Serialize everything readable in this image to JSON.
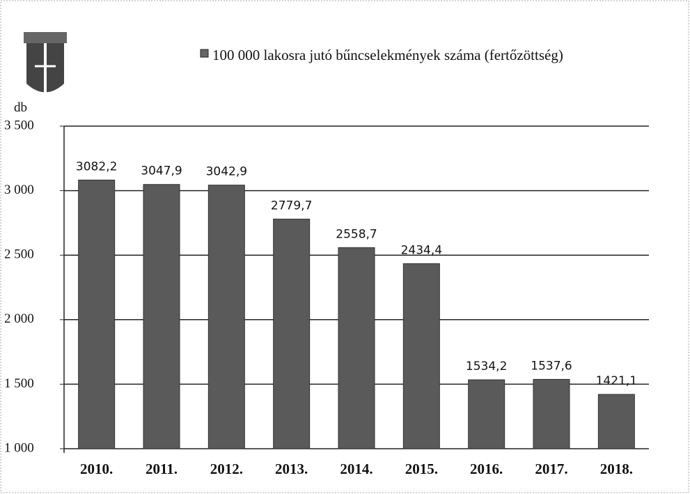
{
  "chart_data": {
    "type": "bar",
    "y_label": "db",
    "categories": [
      "2010.",
      "2011.",
      "2012.",
      "2013.",
      "2014.",
      "2015.",
      "2016.",
      "2017.",
      "2018."
    ],
    "series": [
      {
        "name": "100 000 lakosra jutó bűncselekmények száma (fertőzöttség)",
        "color": "#5a5a5a",
        "values": [
          3082.2,
          3047.9,
          3042.9,
          2779.7,
          2558.7,
          2434.4,
          1534.2,
          1537.6,
          1421.1
        ],
        "value_labels": [
          "3082,2",
          "3047,9",
          "3042,9",
          "2779,7",
          "2558,7",
          "2434,4",
          "1534,2",
          "1537,6",
          "1421,1"
        ]
      }
    ],
    "ylim": [
      1000,
      3500
    ],
    "yticks": [
      {
        "value": 1000,
        "label": "1 000"
      },
      {
        "value": 1500,
        "label": "1 500"
      },
      {
        "value": 2000,
        "label": "2 000"
      },
      {
        "value": 2500,
        "label": "2 500"
      },
      {
        "value": 3000,
        "label": "3 000"
      },
      {
        "value": 3500,
        "label": "3 500"
      }
    ],
    "grid": true
  }
}
